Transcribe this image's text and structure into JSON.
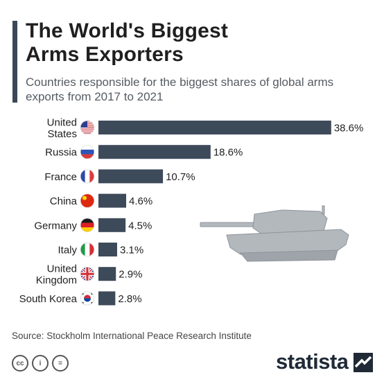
{
  "header": {
    "title_line1": "The World's Biggest",
    "title_line2": "Arms Exporters",
    "subtitle_line1": "Countries responsible for the biggest shares of global arms",
    "subtitle_line2": "exports from 2017 to 2021"
  },
  "chart_data": {
    "type": "bar",
    "orientation": "horizontal",
    "title": "The World's Biggest Arms Exporters",
    "subtitle": "Countries responsible for the biggest shares of global arms exports from 2017 to 2021",
    "categories": [
      "United States",
      "Russia",
      "France",
      "China",
      "Germany",
      "Italy",
      "United Kingdom",
      "South Korea"
    ],
    "category_lines": [
      [
        "United",
        "States"
      ],
      [
        "Russia"
      ],
      [
        "France"
      ],
      [
        "China"
      ],
      [
        "Germany"
      ],
      [
        "Italy"
      ],
      [
        "United",
        "Kingdom"
      ],
      [
        "South Korea"
      ]
    ],
    "values": [
      38.6,
      18.6,
      10.7,
      4.6,
      4.5,
      3.1,
      2.9,
      2.8
    ],
    "value_labels": [
      "38.6%",
      "18.6%",
      "10.7%",
      "4.6%",
      "4.5%",
      "3.1%",
      "2.9%",
      "2.8%"
    ],
    "flag_icons": [
      "us-flag-icon",
      "russia-flag-icon",
      "france-flag-icon",
      "china-flag-icon",
      "germany-flag-icon",
      "italy-flag-icon",
      "uk-flag-icon",
      "south-korea-flag-icon"
    ],
    "xlim": [
      0,
      40
    ],
    "bar_color": "#3d4a59",
    "grid": false,
    "legend": "none"
  },
  "footer": {
    "source": "Source: Stockholm International Peace Research Institute",
    "brand": "statista",
    "license_icons": [
      "cc-icon",
      "person-icon",
      "equals-icon"
    ],
    "license_glyphs": [
      "cc",
      "i",
      "="
    ]
  },
  "decoration": {
    "illustration": "tank-icon",
    "illustration_color": "#b3b8bd"
  }
}
